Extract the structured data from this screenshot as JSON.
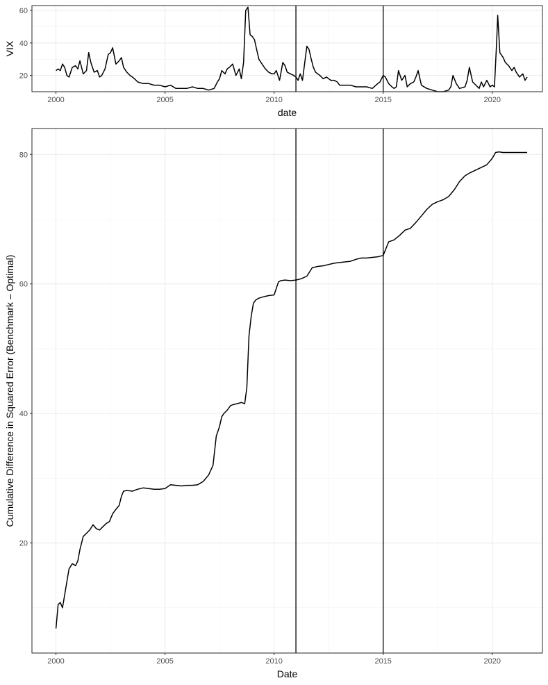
{
  "chart_data": [
    {
      "type": "line",
      "ylabel": "VIX",
      "xlabel": "date",
      "xlim": [
        1998.9,
        2022.3
      ],
      "ylim": [
        10,
        63
      ],
      "x_ticks": [
        2000,
        2005,
        2010,
        2015,
        2020
      ],
      "y_ticks": [
        20,
        40,
        60
      ],
      "grid": true,
      "vlines": [
        2011,
        2015
      ],
      "series": [
        {
          "x": [
            2000.0,
            2000.1,
            2000.2,
            2000.3,
            2000.4,
            2000.5,
            2000.6,
            2000.75,
            2000.9,
            2001.0,
            2001.1,
            2001.25,
            2001.4,
            2001.5,
            2001.6,
            2001.75,
            2001.9,
            2002.0,
            2002.1,
            2002.25,
            2002.4,
            2002.5,
            2002.6,
            2002.75,
            2002.9,
            2003.0,
            2003.1,
            2003.25,
            2003.4,
            2003.5,
            2003.6,
            2003.75,
            2004.0,
            2004.25,
            2004.5,
            2004.75,
            2005.0,
            2005.25,
            2005.5,
            2005.75,
            2006.0,
            2006.25,
            2006.5,
            2006.75,
            2007.0,
            2007.25,
            2007.4,
            2007.5,
            2007.6,
            2007.75,
            2007.85,
            2007.95,
            2008.1,
            2008.25,
            2008.4,
            2008.5,
            2008.6,
            2008.7,
            2008.8,
            2008.9,
            2009.0,
            2009.1,
            2009.2,
            2009.3,
            2009.4,
            2009.5,
            2009.6,
            2009.75,
            2009.9,
            2010.0,
            2010.1,
            2010.25,
            2010.4,
            2010.5,
            2010.6,
            2010.75,
            2010.9,
            2011.0,
            2011.1,
            2011.2,
            2011.3,
            2011.5,
            2011.6,
            2011.7,
            2011.8,
            2011.9,
            2012.0,
            2012.1,
            2012.25,
            2012.4,
            2012.5,
            2012.6,
            2012.75,
            2012.9,
            2013.0,
            2013.25,
            2013.5,
            2013.75,
            2014.0,
            2014.25,
            2014.5,
            2014.75,
            2014.85,
            2015.0,
            2015.1,
            2015.25,
            2015.4,
            2015.5,
            2015.6,
            2015.7,
            2015.85,
            2016.0,
            2016.1,
            2016.25,
            2016.4,
            2016.5,
            2016.6,
            2016.75,
            2017.0,
            2017.25,
            2017.5,
            2017.75,
            2018.0,
            2018.1,
            2018.2,
            2018.35,
            2018.5,
            2018.75,
            2018.85,
            2018.95,
            2019.1,
            2019.25,
            2019.4,
            2019.5,
            2019.6,
            2019.75,
            2019.9,
            2020.0,
            2020.1,
            2020.2,
            2020.25,
            2020.35,
            2020.5,
            2020.6,
            2020.75,
            2020.9,
            2021.0,
            2021.1,
            2021.25,
            2021.4,
            2021.5,
            2021.6
          ],
          "y": [
            23,
            24,
            23,
            27,
            25,
            20,
            19,
            25,
            26,
            24,
            29,
            21,
            23,
            34,
            28,
            22,
            23,
            19,
            20,
            24,
            33,
            34,
            37,
            27,
            29,
            31,
            25,
            22,
            20,
            19,
            18,
            16,
            15,
            15,
            14,
            14,
            13,
            14,
            12,
            12,
            12,
            13,
            12,
            12,
            11,
            12,
            16,
            18,
            23,
            21,
            24,
            25,
            27,
            20,
            24,
            18,
            28,
            60,
            62,
            45,
            44,
            42,
            36,
            30,
            28,
            26,
            24,
            22,
            21,
            21,
            23,
            17,
            28,
            26,
            22,
            21,
            20,
            19,
            17,
            21,
            17,
            38,
            36,
            30,
            25,
            22,
            21,
            20,
            18,
            19,
            18,
            17,
            17,
            16,
            14,
            14,
            14,
            13,
            13,
            13,
            12,
            15,
            16,
            20,
            19,
            15,
            13,
            12,
            13,
            23,
            17,
            20,
            13,
            15,
            16,
            19,
            23,
            14,
            12,
            11,
            10,
            10,
            11,
            13,
            20,
            15,
            12,
            13,
            17,
            25,
            16,
            14,
            12,
            16,
            13,
            17,
            13,
            14,
            13,
            40,
            57,
            34,
            31,
            28,
            26,
            23,
            25,
            22,
            19,
            21,
            17,
            19
          ]
        }
      ]
    },
    {
      "type": "line",
      "ylabel": "Cumulative Difference in Squared Error (Benchmark – Optimal)",
      "xlabel": "Date",
      "xlim": [
        1998.9,
        2022.3
      ],
      "ylim": [
        3,
        84
      ],
      "x_ticks": [
        2000,
        2005,
        2010,
        2015,
        2020
      ],
      "y_ticks": [
        20,
        40,
        60,
        80
      ],
      "grid": true,
      "vlines": [
        2011,
        2015
      ],
      "series": [
        {
          "x": [
            2000.0,
            2000.1,
            2000.2,
            2000.3,
            2000.45,
            2000.6,
            2000.75,
            2000.9,
            2001.0,
            2001.1,
            2001.25,
            2001.4,
            2001.55,
            2001.7,
            2001.85,
            2002.0,
            2002.15,
            2002.3,
            2002.45,
            2002.6,
            2002.75,
            2002.9,
            2003.0,
            2003.1,
            2003.25,
            2003.5,
            2003.75,
            2004.0,
            2004.25,
            2004.5,
            2004.75,
            2005.0,
            2005.25,
            2005.5,
            2005.75,
            2006.0,
            2006.25,
            2006.5,
            2006.75,
            2007.0,
            2007.2,
            2007.35,
            2007.5,
            2007.6,
            2007.7,
            2007.85,
            2008.0,
            2008.15,
            2008.3,
            2008.5,
            2008.65,
            2008.75,
            2008.85,
            2008.95,
            2009.05,
            2009.15,
            2009.3,
            2009.5,
            2009.75,
            2010.0,
            2010.2,
            2010.3,
            2010.5,
            2010.75,
            2011.0,
            2011.25,
            2011.5,
            2011.75,
            2012.0,
            2012.25,
            2012.5,
            2012.75,
            2013.0,
            2013.25,
            2013.5,
            2013.75,
            2014.0,
            2014.25,
            2014.5,
            2014.75,
            2015.0,
            2015.25,
            2015.5,
            2015.75,
            2016.0,
            2016.25,
            2016.5,
            2016.75,
            2017.0,
            2017.25,
            2017.5,
            2017.75,
            2018.0,
            2018.25,
            2018.5,
            2018.75,
            2019.0,
            2019.25,
            2019.5,
            2019.75,
            2020.0,
            2020.15,
            2020.3,
            2020.5,
            2020.75,
            2021.0,
            2021.25,
            2021.5,
            2021.6
          ],
          "y": [
            6.8,
            10.5,
            10.8,
            10.0,
            13.0,
            16.0,
            16.8,
            16.5,
            17.2,
            19.0,
            21.0,
            21.5,
            22.0,
            22.8,
            22.2,
            22.0,
            22.5,
            23.0,
            23.3,
            24.5,
            25.2,
            25.8,
            27.2,
            28.0,
            28.1,
            28.0,
            28.3,
            28.5,
            28.4,
            28.3,
            28.3,
            28.4,
            29.0,
            28.9,
            28.8,
            28.9,
            28.9,
            29.0,
            29.5,
            30.5,
            32.0,
            36.5,
            38.0,
            39.5,
            40.0,
            40.5,
            41.2,
            41.4,
            41.5,
            41.7,
            41.5,
            44.0,
            52.0,
            55.0,
            57.0,
            57.5,
            57.8,
            58.0,
            58.2,
            58.3,
            60.3,
            60.5,
            60.6,
            60.5,
            60.6,
            60.8,
            61.2,
            62.5,
            62.7,
            62.8,
            63.0,
            63.2,
            63.3,
            63.4,
            63.5,
            63.8,
            64.0,
            64.0,
            64.1,
            64.2,
            64.4,
            66.5,
            66.8,
            67.5,
            68.3,
            68.6,
            69.5,
            70.5,
            71.5,
            72.3,
            72.7,
            73.0,
            73.5,
            74.5,
            75.8,
            76.7,
            77.2,
            77.6,
            78.0,
            78.4,
            79.4,
            80.3,
            80.4,
            80.3,
            80.3,
            80.3,
            80.3,
            80.3,
            80.3
          ]
        }
      ]
    }
  ]
}
